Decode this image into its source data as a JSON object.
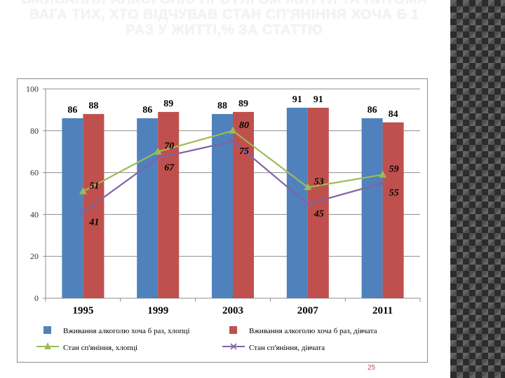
{
  "slide": {
    "title": "ВЖИВАННЯ АЛКОГОЛЮ ПРОТЯГОМ ЖИТТЯ ТА ПИТОМА ВАГА ТИХ, ХТО ВІДЧУВАВ СТАН СП'ЯНІННЯ ХОЧА Б 1 РАЗ У ЖИТТІ,% ЗА СТАТТЮ",
    "page_number": "25"
  },
  "colors": {
    "bar_boys": "#4f81bd",
    "bar_girls": "#c0504d",
    "line_boys": "#9bbb59",
    "line_girls": "#8064a2",
    "title_text": "#f3f3f3",
    "page_number": "#c0504d"
  },
  "chart_data": {
    "type": "bar",
    "title": "",
    "xlabel": "",
    "ylabel": "",
    "categories": [
      "1995",
      "1999",
      "2003",
      "2007",
      "2011"
    ],
    "ylim": [
      0,
      100
    ],
    "yticks": [
      "0",
      "20",
      "40",
      "60",
      "80",
      "100"
    ],
    "grid": true,
    "legend_position": "bottom",
    "series": [
      {
        "name": "Вживання алкоголю хоча б раз, хлопці",
        "kind": "bar",
        "marker": "none",
        "color": "#4f81bd",
        "values": [
          86,
          86,
          88,
          91,
          86
        ],
        "labels": [
          "86",
          "86",
          "88",
          "91",
          "86"
        ]
      },
      {
        "name": "Вживання алкоголю хоча б раз, дівчата",
        "kind": "bar",
        "marker": "none",
        "color": "#c0504d",
        "values": [
          88,
          89,
          89,
          91,
          84
        ],
        "labels": [
          "88",
          "89",
          "89",
          "91",
          "84"
        ]
      },
      {
        "name": "Стан сп'яніння, хлопці",
        "kind": "line",
        "marker": "triangle",
        "color": "#9bbb59",
        "values": [
          51,
          70,
          80,
          53,
          59
        ],
        "labels": [
          "51",
          "70",
          "80",
          "53",
          "59"
        ]
      },
      {
        "name": "Стан сп'яніння, дівчата",
        "kind": "line",
        "marker": "cross",
        "color": "#8064a2",
        "values": [
          41,
          67,
          75,
          45,
          55
        ],
        "labels": [
          "41",
          "67",
          "75",
          "45",
          "55"
        ]
      }
    ]
  }
}
